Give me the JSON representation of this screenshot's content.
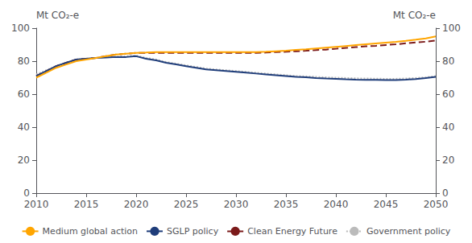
{
  "chart_data": {
    "type": "line",
    "ylabel": "Mt CO₂-e",
    "y2label": "Mt CO₂-e",
    "x": [
      2010,
      2011,
      2012,
      2013,
      2014,
      2015,
      2016,
      2017,
      2018,
      2019,
      2020,
      2021,
      2022,
      2023,
      2024,
      2025,
      2026,
      2027,
      2028,
      2029,
      2030,
      2031,
      2032,
      2033,
      2034,
      2035,
      2036,
      2037,
      2038,
      2039,
      2040,
      2041,
      2042,
      2043,
      2044,
      2045,
      2046,
      2047,
      2048,
      2049,
      2050
    ],
    "xlim": [
      2010,
      2050
    ],
    "xticks": [
      2010,
      2015,
      2020,
      2025,
      2030,
      2035,
      2040,
      2045,
      2050
    ],
    "ylim": [
      0,
      100
    ],
    "yticks": [
      0,
      20,
      40,
      60,
      80,
      100
    ],
    "y2lim": [
      0,
      100
    ],
    "y2ticks": [
      0,
      20,
      40,
      60,
      80,
      100
    ],
    "grid": false,
    "legend": "bottom",
    "series": [
      {
        "name": "Medium global action",
        "color": "#FFA500",
        "line_style": "solid",
        "values": [
          70,
          73,
          76,
          78,
          80,
          81,
          82,
          83,
          84,
          84.5,
          85,
          85.2,
          85.5,
          85.5,
          85.5,
          85.5,
          85.5,
          85.5,
          85.5,
          85.5,
          85.5,
          85.5,
          85.5,
          85.7,
          86,
          86.3,
          86.8,
          87.2,
          87.7,
          88.2,
          88.7,
          89.2,
          89.7,
          90.2,
          90.7,
          91.2,
          91.7,
          92.3,
          93.0,
          93.8,
          95.0
        ]
      },
      {
        "name": "SGLP policy",
        "color": "#1F3D7A",
        "line_style": "solid",
        "values": [
          71,
          74,
          77,
          79,
          81,
          81.5,
          82,
          82.2,
          82.5,
          82.5,
          83,
          81.5,
          80.5,
          79,
          78,
          77,
          76,
          75,
          74.5,
          74,
          73.5,
          73,
          72.5,
          72,
          71.5,
          71,
          70.5,
          70.2,
          69.8,
          69.5,
          69.3,
          69,
          68.8,
          68.7,
          68.6,
          68.5,
          68.5,
          68.8,
          69.2,
          69.7,
          70.5
        ]
      },
      {
        "name": "Clean Energy Future",
        "color": "#7B1A1A",
        "line_style": "dashed",
        "values": [
          71,
          74,
          77,
          79,
          81,
          81.5,
          82,
          83,
          84,
          84.5,
          85,
          85,
          85,
          85,
          85,
          85,
          85,
          85,
          85,
          85,
          85,
          85,
          85,
          85.2,
          85.5,
          85.7,
          86,
          86.3,
          86.7,
          87,
          87.5,
          88,
          88.5,
          89,
          89.3,
          89.8,
          90.2,
          90.8,
          91.3,
          91.8,
          92.5
        ]
      },
      {
        "name": "Government policy",
        "color": "#BBBBBB",
        "line_style": "dotted",
        "values": [
          72,
          74.5,
          77,
          79,
          81,
          81.5,
          82,
          82.5,
          82.8,
          83,
          83.5,
          82,
          81,
          79.5,
          78.5,
          77.5,
          76.5,
          75.5,
          75,
          74.5,
          74,
          73.5,
          73,
          72.5,
          72,
          71.5,
          71,
          70.8,
          70.5,
          70.2,
          70,
          69.8,
          69.6,
          69.5,
          69.4,
          69.3,
          69.3,
          69.5,
          69.8,
          70.2,
          71
        ]
      }
    ]
  }
}
